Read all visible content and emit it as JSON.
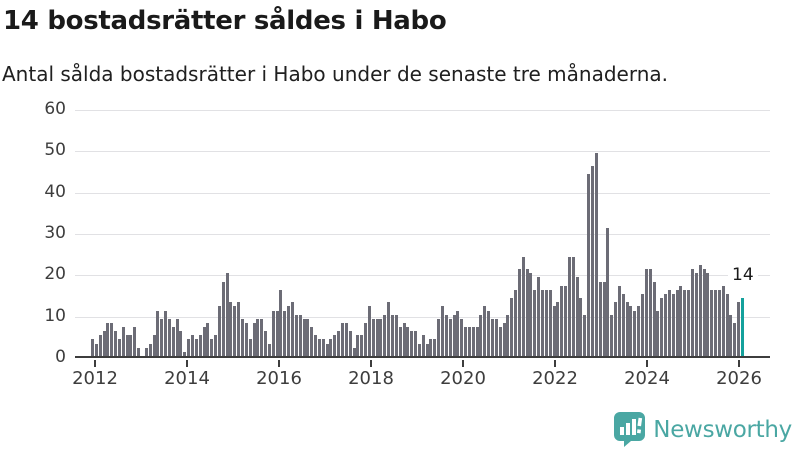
{
  "header": {
    "title": "14 bostadsrätter såldes i Habo",
    "subtitle": "Antal sålda bostadsrätter i Habo under de senaste tre månaderna."
  },
  "chart_data": {
    "type": "bar",
    "title": "14 bostadsrätter såldes i Habo",
    "subtitle": "Antal sålda bostadsrätter i Habo under de senaste tre månaderna.",
    "xlabel": "",
    "ylabel": "Antal sålda bostadsrätter",
    "x_start_month": "2012-01",
    "x_end_month": "2026-02",
    "ylim": [
      0,
      60
    ],
    "y_ticks": [
      0,
      10,
      20,
      30,
      40,
      50,
      60
    ],
    "x_tick_labels": [
      "2012",
      "2014",
      "2016",
      "2018",
      "2020",
      "2022",
      "2024",
      "2026"
    ],
    "grid": "horizontal",
    "legend": "none",
    "bar_color": "#6c6c76",
    "highlight_color": "#14a19c",
    "values": [
      4,
      3,
      5,
      6,
      8,
      8,
      6,
      4,
      7,
      5,
      5,
      7,
      2,
      0,
      2,
      3,
      5,
      11,
      9,
      11,
      9,
      7,
      9,
      6,
      1,
      4,
      5,
      4,
      5,
      7,
      8,
      4,
      5,
      12,
      18,
      20,
      13,
      12,
      13,
      9,
      8,
      4,
      8,
      9,
      9,
      6,
      3,
      11,
      11,
      16,
      11,
      12,
      13,
      10,
      10,
      9,
      9,
      7,
      5,
      4,
      4,
      3,
      4,
      5,
      6,
      8,
      8,
      6,
      2,
      5,
      5,
      8,
      12,
      9,
      9,
      9,
      10,
      13,
      10,
      10,
      7,
      8,
      7,
      6,
      6,
      3,
      5,
      3,
      4,
      4,
      9,
      12,
      10,
      9,
      10,
      11,
      9,
      7,
      7,
      7,
      7,
      10,
      12,
      11,
      9,
      9,
      7,
      8,
      10,
      14,
      16,
      21,
      24,
      21,
      20,
      16,
      19,
      16,
      16,
      16,
      12,
      13,
      17,
      17,
      24,
      24,
      19,
      14,
      10,
      44,
      46,
      49,
      18,
      18,
      31,
      10,
      13,
      17,
      15,
      13,
      12,
      11,
      12,
      15,
      21,
      21,
      18,
      11,
      14,
      15,
      16,
      15,
      16,
      17,
      16,
      16,
      21,
      20,
      22,
      21,
      20,
      16,
      16,
      16,
      17,
      15,
      10,
      8,
      13,
      14
    ],
    "highlight": {
      "index": 169,
      "value": 14,
      "label": "14"
    }
  },
  "footer": {
    "brand": "Newsworthy",
    "brand_color": "#4aa7a3"
  },
  "colors": {
    "bar": "#6c6c76",
    "highlight": "#14a19c",
    "grid": "#e1e1e4",
    "axis": "#3d3d3d",
    "text": "#1a1a1a",
    "brand": "#4aa7a3"
  }
}
